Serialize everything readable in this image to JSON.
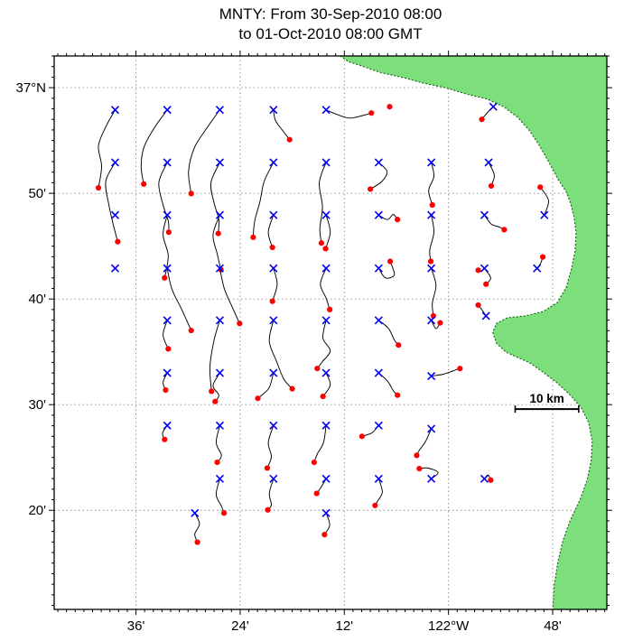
{
  "title": {
    "line1": "MNTY: From 30-Sep-2010 08:00",
    "line2": "to 01-Oct-2010 08:00 GMT"
  },
  "axes": {
    "x_ticks": [
      {
        "label": "36'",
        "value": -122.6
      },
      {
        "label": "24'",
        "value": -122.4
      },
      {
        "label": "12'",
        "value": -122.2
      },
      {
        "label": "122°W",
        "value": -122.0
      },
      {
        "label": "48'",
        "value": -121.8
      }
    ],
    "y_ticks": [
      {
        "label": "37°N",
        "value": 37.0
      },
      {
        "label": "50'",
        "value": 36.8333
      },
      {
        "label": "40'",
        "value": 36.6667
      },
      {
        "label": "30'",
        "value": 36.5
      },
      {
        "label": "20'",
        "value": 36.3333
      }
    ],
    "lon_range": [
      -122.757,
      -121.696
    ],
    "lat_range": [
      36.177,
      37.05
    ],
    "minor_tick_arcmin": 1,
    "grid": "dotted"
  },
  "scale_bar": {
    "label": "10 km",
    "lon_start": -121.872,
    "lon_end": -121.75,
    "lat": 36.493
  },
  "colors": {
    "land": "#7CDF7C",
    "coast_edge": "#226622",
    "start_marker": "#0000EE",
    "end_marker": "#FF0000",
    "track": "#000000",
    "grid": "#8a8a8a",
    "frame": "#000000"
  },
  "chart_data": {
    "type": "scatter",
    "subtype": "drifter-trajectories",
    "title": "MNTY: From 30-Sep-2010 08:00 to 01-Oct-2010 08:00 GMT",
    "xlim": [
      -122.757,
      -121.696
    ],
    "ylim": [
      36.177,
      37.05
    ],
    "legend_note": "blue x = trajectory start, red dot = trajectory end, black line = 24 h track",
    "trajectories": [
      [
        [
          -122.64,
          36.965
        ],
        [
          -122.658,
          36.938
        ],
        [
          -122.672,
          36.908
        ],
        [
          -122.666,
          36.876
        ],
        [
          -122.672,
          36.842
        ]
      ],
      [
        [
          -122.54,
          36.965
        ],
        [
          -122.566,
          36.935
        ],
        [
          -122.585,
          36.905
        ],
        [
          -122.59,
          36.875
        ],
        [
          -122.585,
          36.848
        ]
      ],
      [
        [
          -122.439,
          36.965
        ],
        [
          -122.465,
          36.935
        ],
        [
          -122.488,
          36.905
        ],
        [
          -122.499,
          36.868
        ],
        [
          -122.494,
          36.833
        ]
      ],
      [
        [
          -122.336,
          36.965
        ],
        [
          -122.332,
          36.948
        ],
        [
          -122.318,
          36.932
        ],
        [
          -122.305,
          36.918
        ]
      ],
      [
        [
          -122.235,
          36.965
        ],
        [
          -122.215,
          36.958
        ],
        [
          -122.19,
          36.952
        ],
        [
          -122.165,
          36.956
        ],
        [
          -122.148,
          36.96
        ]
      ],
      [
        [
          -121.914,
          36.97
        ],
        [
          -121.924,
          36.962
        ],
        [
          -121.936,
          36.95
        ]
      ],
      [
        [
          -122.64,
          36.882
        ],
        [
          -122.658,
          36.852
        ],
        [
          -122.652,
          36.815
        ],
        [
          -122.643,
          36.782
        ],
        [
          -122.635,
          36.757
        ]
      ],
      [
        [
          -122.54,
          36.882
        ],
        [
          -122.556,
          36.85
        ],
        [
          -122.548,
          36.815
        ],
        [
          -122.538,
          36.79
        ],
        [
          -122.537,
          36.772
        ]
      ],
      [
        [
          -122.439,
          36.882
        ],
        [
          -122.456,
          36.85
        ],
        [
          -122.45,
          36.818
        ],
        [
          -122.441,
          36.792
        ],
        [
          -122.442,
          36.77
        ]
      ],
      [
        [
          -122.336,
          36.882
        ],
        [
          -122.354,
          36.852
        ],
        [
          -122.362,
          36.82
        ],
        [
          -122.372,
          36.79
        ],
        [
          -122.375,
          36.764
        ]
      ],
      [
        [
          -122.235,
          36.882
        ],
        [
          -122.248,
          36.85
        ],
        [
          -122.242,
          36.812
        ],
        [
          -122.247,
          36.778
        ],
        [
          -122.244,
          36.755
        ]
      ],
      [
        [
          -122.134,
          36.882
        ],
        [
          -122.118,
          36.868
        ],
        [
          -122.128,
          36.852
        ],
        [
          -122.15,
          36.84
        ]
      ],
      [
        [
          -122.033,
          36.882
        ],
        [
          -122.028,
          36.86
        ],
        [
          -122.038,
          36.838
        ],
        [
          -122.031,
          36.815
        ]
      ],
      [
        [
          -121.923,
          36.882
        ],
        [
          -121.912,
          36.862
        ],
        [
          -121.918,
          36.845
        ]
      ],
      [
        [
          -122.54,
          36.799
        ],
        [
          -122.548,
          36.768
        ],
        [
          -122.538,
          36.735
        ],
        [
          -122.545,
          36.7
        ]
      ],
      [
        [
          -122.439,
          36.799
        ],
        [
          -122.452,
          36.768
        ],
        [
          -122.444,
          36.738
        ],
        [
          -122.437,
          36.713
        ]
      ],
      [
        [
          -122.336,
          36.799
        ],
        [
          -122.346,
          36.772
        ],
        [
          -122.338,
          36.748
        ]
      ],
      [
        [
          -122.235,
          36.799
        ],
        [
          -122.227,
          36.772
        ],
        [
          -122.236,
          36.746
        ]
      ],
      [
        [
          -122.134,
          36.799
        ],
        [
          -122.117,
          36.792
        ],
        [
          -122.106,
          36.8
        ],
        [
          -122.098,
          36.792
        ]
      ],
      [
        [
          -122.033,
          36.799
        ],
        [
          -122.028,
          36.772
        ],
        [
          -122.036,
          36.744
        ],
        [
          -122.034,
          36.726
        ]
      ],
      [
        [
          -121.931,
          36.799
        ],
        [
          -121.918,
          36.785
        ],
        [
          -121.902,
          36.78
        ],
        [
          -121.893,
          36.776
        ]
      ],
      [
        [
          -121.816,
          36.799
        ],
        [
          -121.808,
          36.822
        ],
        [
          -121.824,
          36.843
        ]
      ],
      [
        [
          -122.54,
          36.715
        ],
        [
          -122.531,
          36.682
        ],
        [
          -122.512,
          36.65
        ],
        [
          -122.494,
          36.617
        ]
      ],
      [
        [
          -122.439,
          36.715
        ],
        [
          -122.43,
          36.682
        ],
        [
          -122.414,
          36.652
        ],
        [
          -122.401,
          36.628
        ]
      ],
      [
        [
          -122.336,
          36.715
        ],
        [
          -122.329,
          36.69
        ],
        [
          -122.338,
          36.663
        ]
      ],
      [
        [
          -122.235,
          36.715
        ],
        [
          -122.246,
          36.69
        ],
        [
          -122.235,
          36.668
        ],
        [
          -122.228,
          36.65
        ]
      ],
      [
        [
          -122.134,
          36.715
        ],
        [
          -122.121,
          36.7
        ],
        [
          -122.104,
          36.705
        ],
        [
          -122.112,
          36.726
        ]
      ],
      [
        [
          -122.033,
          36.715
        ],
        [
          -122.024,
          36.688
        ],
        [
          -122.031,
          36.66
        ],
        [
          -122.029,
          36.64
        ]
      ],
      [
        [
          -121.931,
          36.715
        ],
        [
          -121.919,
          36.7
        ],
        [
          -121.928,
          36.69
        ]
      ],
      [
        [
          -121.83,
          36.715
        ],
        [
          -121.823,
          36.723
        ],
        [
          -121.819,
          36.733
        ]
      ],
      [
        [
          -122.54,
          36.633
        ],
        [
          -122.548,
          36.61
        ],
        [
          -122.538,
          36.588
        ]
      ],
      [
        [
          -122.439,
          36.633
        ],
        [
          -122.45,
          36.602
        ],
        [
          -122.458,
          36.56
        ],
        [
          -122.455,
          36.521
        ]
      ],
      [
        [
          -122.336,
          36.633
        ],
        [
          -122.344,
          36.6
        ],
        [
          -122.33,
          36.568
        ],
        [
          -122.316,
          36.54
        ],
        [
          -122.3,
          36.525
        ]
      ],
      [
        [
          -122.235,
          36.633
        ],
        [
          -122.241,
          36.605
        ],
        [
          -122.227,
          36.585
        ],
        [
          -122.242,
          36.568
        ],
        [
          -122.252,
          36.557
        ]
      ],
      [
        [
          -122.134,
          36.633
        ],
        [
          -122.115,
          36.62
        ],
        [
          -122.104,
          36.602
        ],
        [
          -122.096,
          36.594
        ]
      ],
      [
        [
          -122.033,
          36.633
        ],
        [
          -122.024,
          36.62
        ],
        [
          -122.016,
          36.629
        ]
      ],
      [
        [
          -121.928,
          36.64
        ],
        [
          -121.936,
          36.65
        ],
        [
          -121.943,
          36.657
        ]
      ],
      [
        [
          -122.54,
          36.55
        ],
        [
          -122.548,
          36.535
        ],
        [
          -122.543,
          36.523
        ]
      ],
      [
        [
          -122.439,
          36.55
        ],
        [
          -122.452,
          36.53
        ],
        [
          -122.441,
          36.515
        ],
        [
          -122.448,
          36.505
        ]
      ],
      [
        [
          -122.336,
          36.55
        ],
        [
          -122.344,
          36.527
        ],
        [
          -122.357,
          36.516
        ],
        [
          -122.366,
          36.51
        ]
      ],
      [
        [
          -122.235,
          36.55
        ],
        [
          -122.227,
          36.531
        ],
        [
          -122.241,
          36.513
        ]
      ],
      [
        [
          -122.134,
          36.55
        ],
        [
          -122.117,
          36.537
        ],
        [
          -122.106,
          36.522
        ],
        [
          -122.098,
          36.515
        ]
      ],
      [
        [
          -122.033,
          36.545
        ],
        [
          -122.01,
          36.548
        ],
        [
          -121.992,
          36.553
        ],
        [
          -121.978,
          36.557
        ]
      ],
      [
        [
          -122.54,
          36.467
        ],
        [
          -122.549,
          36.455
        ],
        [
          -122.545,
          36.445
        ]
      ],
      [
        [
          -122.439,
          36.467
        ],
        [
          -122.446,
          36.44
        ],
        [
          -122.436,
          36.42
        ],
        [
          -122.444,
          36.409
        ]
      ],
      [
        [
          -122.336,
          36.467
        ],
        [
          -122.346,
          36.44
        ],
        [
          -122.34,
          36.418
        ],
        [
          -122.348,
          36.4
        ]
      ],
      [
        [
          -122.235,
          36.467
        ],
        [
          -122.24,
          36.44
        ],
        [
          -122.252,
          36.422
        ],
        [
          -122.258,
          36.409
        ]
      ],
      [
        [
          -122.134,
          36.467
        ],
        [
          -122.146,
          36.456
        ],
        [
          -122.158,
          36.452
        ],
        [
          -122.166,
          36.45
        ]
      ],
      [
        [
          -122.033,
          36.462
        ],
        [
          -122.044,
          36.442
        ],
        [
          -122.056,
          36.428
        ],
        [
          -122.061,
          36.42
        ]
      ],
      [
        [
          -122.439,
          36.383
        ],
        [
          -122.446,
          36.358
        ],
        [
          -122.436,
          36.34
        ],
        [
          -122.431,
          36.329
        ]
      ],
      [
        [
          -122.336,
          36.383
        ],
        [
          -122.344,
          36.36
        ],
        [
          -122.34,
          36.342
        ],
        [
          -122.347,
          36.334
        ]
      ],
      [
        [
          -122.235,
          36.383
        ],
        [
          -122.246,
          36.368
        ],
        [
          -122.253,
          36.36
        ]
      ],
      [
        [
          -122.134,
          36.383
        ],
        [
          -122.127,
          36.362
        ],
        [
          -122.136,
          36.348
        ],
        [
          -122.141,
          36.341
        ]
      ],
      [
        [
          -122.033,
          36.383
        ],
        [
          -122.02,
          36.393
        ],
        [
          -122.04,
          36.4
        ],
        [
          -122.056,
          36.399
        ]
      ],
      [
        [
          -121.931,
          36.383
        ],
        [
          -121.924,
          36.389
        ],
        [
          -121.919,
          36.381
        ]
      ],
      [
        [
          -122.487,
          36.329
        ],
        [
          -122.478,
          36.312
        ],
        [
          -122.487,
          36.296
        ],
        [
          -122.482,
          36.283
        ]
      ],
      [
        [
          -122.235,
          36.329
        ],
        [
          -122.228,
          36.31
        ],
        [
          -122.238,
          36.295
        ]
      ]
    ],
    "start_only_markers": [
      [
        -122.64,
        36.799
      ],
      [
        -122.64,
        36.715
      ]
    ],
    "end_only_markers": [
      [
        -122.113,
        36.97
      ],
      [
        -121.943,
        36.712
      ]
    ],
    "coastline": [
      [
        -122.225,
        37.06
      ],
      [
        -122.192,
        37.041
      ],
      [
        -122.162,
        37.033
      ],
      [
        -122.131,
        37.024
      ],
      [
        -122.087,
        37.016
      ],
      [
        -122.047,
        37.007
      ],
      [
        -122.006,
        37.0
      ],
      [
        -121.966,
        36.99
      ],
      [
        -121.926,
        36.982
      ],
      [
        -121.894,
        36.97
      ],
      [
        -121.867,
        36.953
      ],
      [
        -121.844,
        36.932
      ],
      [
        -121.825,
        36.908
      ],
      [
        -121.807,
        36.882
      ],
      [
        -121.79,
        36.856
      ],
      [
        -121.774,
        36.836
      ],
      [
        -121.766,
        36.819
      ],
      [
        -121.759,
        36.796
      ],
      [
        -121.755,
        36.771
      ],
      [
        -121.757,
        36.742
      ],
      [
        -121.764,
        36.714
      ],
      [
        -121.774,
        36.685
      ],
      [
        -121.791,
        36.661
      ],
      [
        -121.818,
        36.647
      ],
      [
        -121.852,
        36.64
      ],
      [
        -121.887,
        36.637
      ],
      [
        -121.908,
        36.628
      ],
      [
        -121.915,
        36.614
      ],
      [
        -121.908,
        36.597
      ],
      [
        -121.89,
        36.583
      ],
      [
        -121.866,
        36.574
      ],
      [
        -121.844,
        36.566
      ],
      [
        -121.818,
        36.551
      ],
      [
        -121.791,
        36.534
      ],
      [
        -121.765,
        36.514
      ],
      [
        -121.745,
        36.495
      ],
      [
        -121.731,
        36.472
      ],
      [
        -121.724,
        36.443
      ],
      [
        -121.726,
        36.412
      ],
      [
        -121.734,
        36.381
      ],
      [
        -121.748,
        36.349
      ],
      [
        -121.766,
        36.318
      ],
      [
        -121.78,
        36.286
      ],
      [
        -121.79,
        36.252
      ],
      [
        -121.797,
        36.215
      ],
      [
        -121.8,
        36.17
      ],
      [
        -121.69,
        36.17
      ],
      [
        -121.69,
        37.06
      ]
    ]
  }
}
